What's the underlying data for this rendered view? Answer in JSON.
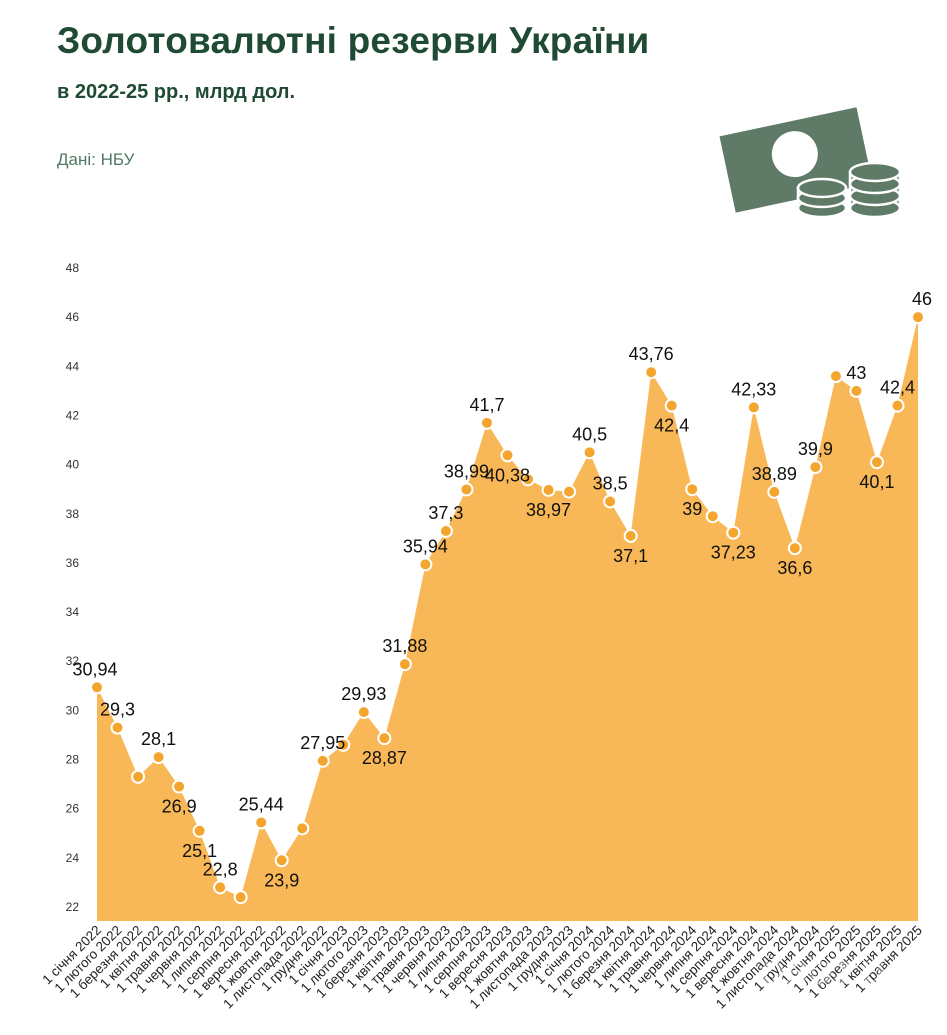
{
  "header": {
    "title": "Золотовалютні резерви України",
    "subtitle": "в 2022-25 рр., млрд дол.",
    "source": "Дані: НБУ"
  },
  "icons": {
    "illustration": "banknote-and-coins-icon"
  },
  "colors": {
    "area_fill": "#f9b857",
    "marker_fill": "#f4a52e",
    "marker_stroke": "#ffffff",
    "title": "#1f4a33",
    "icon": "#5f7a66"
  },
  "chart_data": {
    "type": "area",
    "title": "Золотовалютні резерви України",
    "subtitle": "в 2022-25 рр., млрд дол.",
    "xlabel": "",
    "ylabel": "",
    "ylim": [
      21,
      48
    ],
    "yticks": [
      22,
      24,
      26,
      28,
      30,
      32,
      34,
      36,
      38,
      40,
      42,
      44,
      46,
      48
    ],
    "grid": false,
    "legend": "none",
    "categories": [
      "1 січня 2022",
      "1 лютого 2022",
      "1 березня 2022",
      "1 квітня 2022",
      "1 травня 2022",
      "1 червня 2022",
      "1 липня 2022",
      "1 серпня 2022",
      "1 вересня 2022",
      "1 жовтня 2022",
      "1 листопада 2022",
      "1 грудня 2022",
      "1 січня 2023",
      "1 лютого 2023",
      "1 березня 2023",
      "1 квітня 2023",
      "1 травня 2023",
      "1 червня 2023",
      "1 липня 2023",
      "1 серпня 2023",
      "1 вересня 2023",
      "1 жовтня 2023",
      "1 листопада 2023",
      "1 грудня 2023",
      "1 січня 2024",
      "1 лютого 2024",
      "1 березня 2024",
      "1 квітня 2024",
      "1 травня 2024",
      "1 червня 2024",
      "1 липня 2024",
      "1 серпня 2024",
      "1 вересня 2024",
      "1 жовтня 2024",
      "1 листопада 2024",
      "1 грудня 2024",
      "1 січня 2025",
      "1 лютого 2025",
      "1 березня 2025",
      "1 квітня 2025",
      "1 травня 2025"
    ],
    "values": [
      30.94,
      29.3,
      27.3,
      28.1,
      26.9,
      25.1,
      22.8,
      22.4,
      25.44,
      23.9,
      25.2,
      27.95,
      28.6,
      29.93,
      28.87,
      31.88,
      35.94,
      37.3,
      38.99,
      41.7,
      40.38,
      39.4,
      38.97,
      38.9,
      40.5,
      38.5,
      37.1,
      43.76,
      42.4,
      39,
      37.9,
      37.23,
      42.33,
      38.89,
      36.6,
      39.9,
      43.6,
      43,
      40.1,
      42.4,
      46
    ],
    "data_labels": [
      "30,94",
      "29,3",
      "",
      "28,1",
      "26,9",
      "25,1",
      "22,8",
      "",
      "25,44",
      "23,9",
      "",
      "27,95",
      "",
      "29,93",
      "28,87",
      "31,88",
      "35,94",
      "37,3",
      "38,99",
      "41,7",
      "40,38",
      "",
      "38,97",
      "",
      "40,5",
      "38,5",
      "37,1",
      "43,76",
      "42,4",
      "39",
      "",
      "37,23",
      "42,33",
      "38,89",
      "36,6",
      "39,9",
      "",
      "43",
      "40,1",
      "42,4",
      "46"
    ]
  }
}
